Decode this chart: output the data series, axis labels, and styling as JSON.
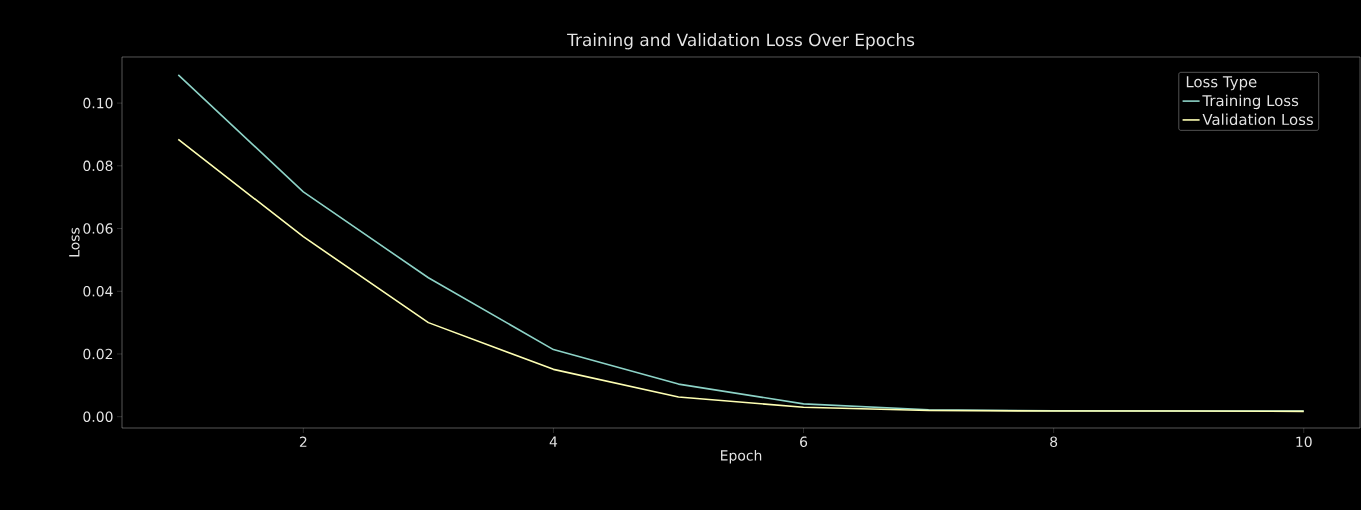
{
  "chart_data": {
    "type": "line",
    "title": "Training and Validation Loss Over Epochs",
    "xlabel": "Epoch",
    "ylabel": "Loss",
    "legend_title": "Loss Type",
    "legend": "top right",
    "grid": false,
    "marker": "none",
    "line_style": "solid",
    "x": [
      1,
      2,
      3,
      4,
      5,
      6,
      7,
      8,
      9,
      10
    ],
    "series": [
      {
        "name": "Training Loss",
        "color": "#8dd3c7",
        "values": [
          0.109,
          0.0717,
          0.0443,
          0.0214,
          0.0104,
          0.0041,
          0.0022,
          0.0019,
          0.0018,
          0.0018
        ]
      },
      {
        "name": "Validation Loss",
        "color": "#feffb3",
        "values": [
          0.0884,
          0.0574,
          0.03,
          0.0151,
          0.0063,
          0.003,
          0.002,
          0.0018,
          0.0018,
          0.0017
        ]
      }
    ],
    "xlim": [
      0.55,
      10.45
    ],
    "ylim": [
      -0.0036,
      0.1147
    ],
    "xticks": [
      2,
      4,
      6,
      8,
      10
    ],
    "yticks": [
      {
        "value": 0,
        "label": "0.00"
      },
      {
        "value": 0.02,
        "label": "0.02"
      },
      {
        "value": 0.04,
        "label": "0.04"
      },
      {
        "value": 0.06,
        "label": "0.06"
      },
      {
        "value": 0.08,
        "label": "0.08"
      },
      {
        "value": 0.1,
        "label": "0.10"
      }
    ]
  }
}
